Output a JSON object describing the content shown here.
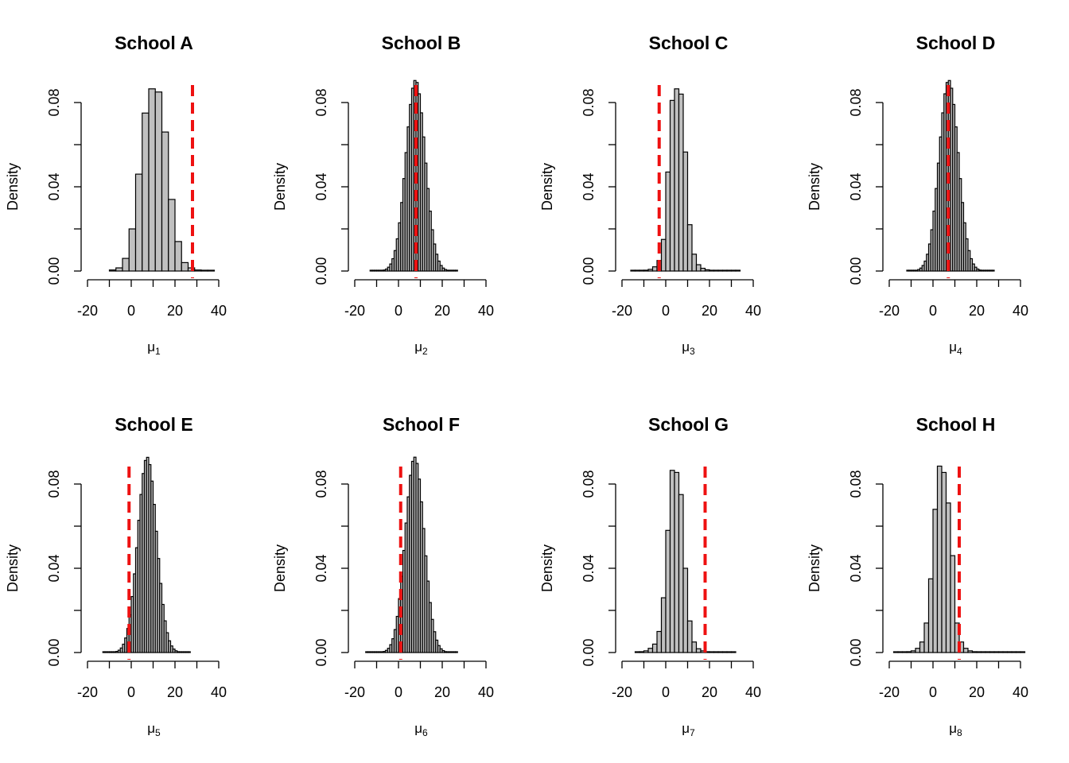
{
  "chart_data": [
    {
      "type": "histogram",
      "title": "School A",
      "xlabel_symbol": "μ",
      "xlabel_subscript": "1",
      "ylabel": "Density",
      "xticks": [
        "-20",
        "0",
        "20",
        "40"
      ],
      "yticks": [
        "0.00",
        "0.04",
        "0.08"
      ],
      "xlim": [
        -20,
        40
      ],
      "ylim": [
        0,
        0.08
      ],
      "bin_width": 3,
      "bin_start": -10,
      "densities": [
        0.0005,
        0.0015,
        0.006,
        0.02,
        0.046,
        0.075,
        0.0865,
        0.085,
        0.066,
        0.034,
        0.014,
        0.004,
        0.0015,
        0.0005,
        0.0003,
        0.0002
      ],
      "observed_line": 28,
      "bar_fill": "#c0c0c0",
      "line_color": "#ee1111"
    },
    {
      "type": "histogram",
      "title": "School B",
      "xlabel_symbol": "μ",
      "xlabel_subscript": "2",
      "ylabel": "Density",
      "xticks": [
        "-20",
        "0",
        "20",
        "40"
      ],
      "yticks": [
        "0.00",
        "0.04",
        "0.08"
      ],
      "xlim": [
        -20,
        40
      ],
      "ylim": [
        0,
        0.08
      ],
      "bin_width": 1,
      "bin_start": -13,
      "center": 7.8,
      "sd": 4.4,
      "count": 40,
      "observed_line": 8,
      "bar_fill": "#c0c0c0",
      "line_color": "#ee1111"
    },
    {
      "type": "histogram",
      "title": "School C",
      "xlabel_symbol": "μ",
      "xlabel_subscript": "3",
      "ylabel": "Density",
      "xticks": [
        "-20",
        "0",
        "20",
        "40"
      ],
      "yticks": [
        "0.00",
        "0.04",
        "0.08"
      ],
      "xlim": [
        -20,
        40
      ],
      "ylim": [
        0,
        0.08
      ],
      "bin_width": 2,
      "bin_start": -16,
      "densities": [
        0.0002,
        0.0002,
        0.0003,
        0.0004,
        0.0008,
        0.002,
        0.005,
        0.015,
        0.047,
        0.081,
        0.0865,
        0.084,
        0.0565,
        0.022,
        0.008,
        0.003,
        0.0013,
        0.0006,
        0.0003,
        0.0002,
        0.0002,
        0.0002,
        0.0002,
        0.0002,
        0.0002
      ],
      "observed_line": -3,
      "bar_fill": "#c0c0c0",
      "line_color": "#ee1111"
    },
    {
      "type": "histogram",
      "title": "School D",
      "xlabel_symbol": "μ",
      "xlabel_subscript": "4",
      "ylabel": "Density",
      "xticks": [
        "-20",
        "0",
        "20",
        "40"
      ],
      "yticks": [
        "0.00",
        "0.04",
        "0.08"
      ],
      "xlim": [
        -20,
        40
      ],
      "ylim": [
        0,
        0.08
      ],
      "bin_width": 1,
      "bin_start": -12,
      "center": 7.2,
      "sd": 4.4,
      "count": 40,
      "observed_line": 7,
      "bar_fill": "#c0c0c0",
      "line_color": "#ee1111"
    },
    {
      "type": "histogram",
      "title": "School E",
      "xlabel_symbol": "μ",
      "xlabel_subscript": "5",
      "ylabel": "Density",
      "xticks": [
        "-20",
        "0",
        "20",
        "40"
      ],
      "yticks": [
        "0.00",
        "0.04",
        "0.08"
      ],
      "xlim": [
        -20,
        40
      ],
      "ylim": [
        0,
        0.08
      ],
      "bin_width": 1,
      "bin_start": -13,
      "center": 7.3,
      "sd": 4.3,
      "count": 40,
      "observed_line": -1,
      "bar_fill": "#c0c0c0",
      "line_color": "#ee1111"
    },
    {
      "type": "histogram",
      "title": "School F",
      "xlabel_symbol": "μ",
      "xlabel_subscript": "6",
      "ylabel": "Density",
      "xticks": [
        "-20",
        "0",
        "20",
        "40"
      ],
      "yticks": [
        "0.00",
        "0.04",
        "0.08"
      ],
      "xlim": [
        -20,
        40
      ],
      "ylim": [
        0,
        0.08
      ],
      "bin_width": 1,
      "bin_start": -15,
      "center": 7.4,
      "sd": 4.3,
      "count": 42,
      "observed_line": 1,
      "bar_fill": "#c0c0c0",
      "line_color": "#ee1111"
    },
    {
      "type": "histogram",
      "title": "School G",
      "xlabel_symbol": "μ",
      "xlabel_subscript": "7",
      "ylabel": "Density",
      "xticks": [
        "-20",
        "0",
        "20",
        "40"
      ],
      "yticks": [
        "0.00",
        "0.04",
        "0.08"
      ],
      "xlim": [
        -20,
        40
      ],
      "ylim": [
        0,
        0.08
      ],
      "bin_width": 2,
      "bin_start": -14,
      "densities": [
        0.0002,
        0.0004,
        0.0008,
        0.002,
        0.004,
        0.01,
        0.026,
        0.058,
        0.0865,
        0.0855,
        0.075,
        0.04,
        0.015,
        0.005,
        0.0018,
        0.0008,
        0.0004,
        0.0003,
        0.0002,
        0.0002,
        0.0002,
        0.0002,
        0.0002
      ],
      "observed_line": 18,
      "bar_fill": "#c0c0c0",
      "line_color": "#ee1111"
    },
    {
      "type": "histogram",
      "title": "School H",
      "xlabel_symbol": "μ",
      "xlabel_subscript": "8",
      "ylabel": "Density",
      "xticks": [
        "-20",
        "0",
        "20",
        "40"
      ],
      "yticks": [
        "0.00",
        "0.04",
        "0.08"
      ],
      "xlim": [
        -20,
        40
      ],
      "ylim": [
        0,
        0.08
      ],
      "bin_width": 2,
      "bin_start": -18,
      "densities": [
        0.0002,
        0.0002,
        0.0003,
        0.0004,
        0.0008,
        0.002,
        0.005,
        0.014,
        0.035,
        0.068,
        0.0885,
        0.0855,
        0.071,
        0.046,
        0.014,
        0.005,
        0.002,
        0.0008,
        0.0004,
        0.0003,
        0.0002,
        0.0002,
        0.0002,
        0.0002,
        0.0002,
        0.0002,
        0.0002,
        0.0002,
        0.0002,
        0.0002
      ],
      "observed_line": 12,
      "bar_fill": "#c0c0c0",
      "line_color": "#ee1111"
    }
  ]
}
